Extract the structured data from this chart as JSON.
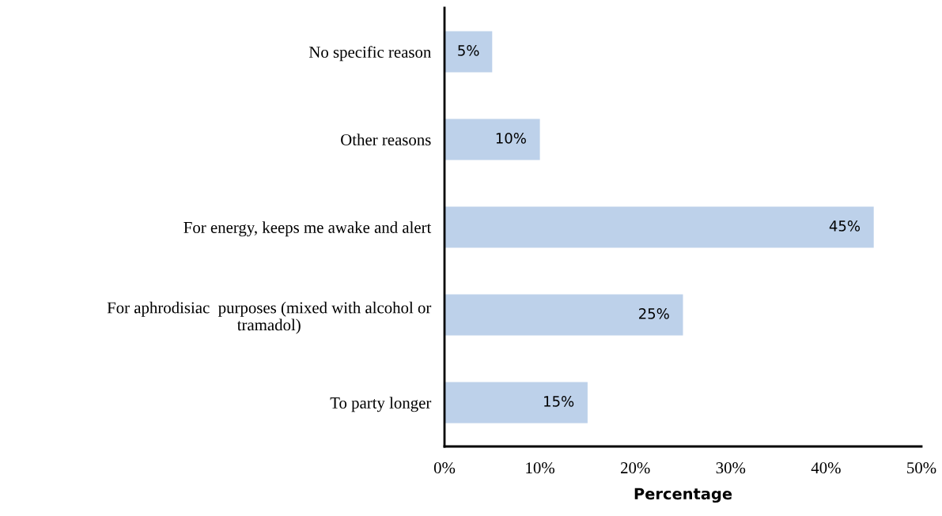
{
  "chart_data": {
    "type": "bar",
    "orientation": "horizontal",
    "xlabel": "Percentage",
    "categories": [
      "No specific reason",
      "Other reasons",
      "For energy, keeps me awake and alert",
      "For aphrodisiac  purposes (mixed with alcohol or\ntramadol)",
      "To party longer"
    ],
    "values": [
      5,
      10,
      45,
      25,
      15
    ],
    "value_labels": [
      "5%",
      "10%",
      "45%",
      "25%",
      "15%"
    ],
    "color": "#bdd1ea",
    "xlim": [
      0,
      50
    ],
    "xticks": [
      {
        "value": 0,
        "label": "0%"
      },
      {
        "value": 10,
        "label": "10%"
      },
      {
        "value": 20,
        "label": "20%"
      },
      {
        "value": 30,
        "label": "30%"
      },
      {
        "value": 40,
        "label": "40%"
      },
      {
        "value": 50,
        "label": "50%"
      }
    ],
    "grid": false,
    "legend": false
  }
}
